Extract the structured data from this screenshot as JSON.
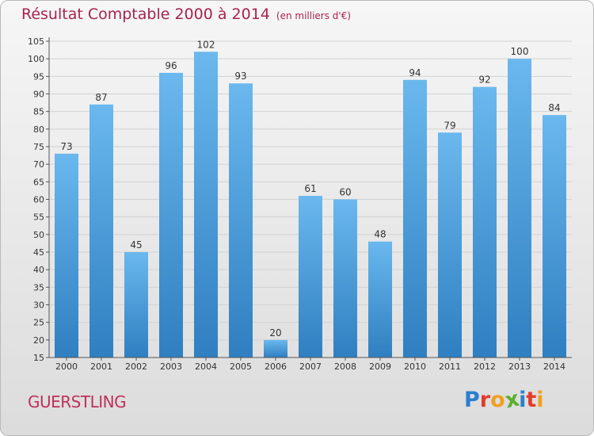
{
  "header": {
    "title": "Résultat Comptable 2000 à 2014",
    "subtitle": "(en milliers d'€)"
  },
  "footer": {
    "commune": "GUERSTLING",
    "logo_letters": [
      "P",
      "r",
      "o",
      "x",
      "i",
      "t",
      "i"
    ],
    "logo_colors": [
      "#2a7fd0",
      "#e23c2c",
      "#f0a020",
      "#5bb030",
      "#2a7fd0",
      "#e23c2c",
      "#f0a020"
    ]
  },
  "colors": {
    "bar_light": "#6ab8ee",
    "bar_dark": "#2f7fc1",
    "title": "#a8234f"
  },
  "chart_data": {
    "type": "bar",
    "title": "Résultat Comptable 2000 à 2014",
    "subtitle": "(en milliers d'€)",
    "categories": [
      "2000",
      "2001",
      "2002",
      "2003",
      "2004",
      "2005",
      "2006",
      "2007",
      "2008",
      "2009",
      "2010",
      "2011",
      "2012",
      "2013",
      "2014"
    ],
    "values": [
      73,
      87,
      45,
      96,
      102,
      93,
      20,
      61,
      60,
      48,
      94,
      79,
      92,
      100,
      84
    ],
    "data_labels": [
      "73",
      "87",
      "45",
      "96",
      "102",
      "93",
      "20",
      "61",
      "60",
      "48",
      "94",
      "79",
      "92",
      "100",
      "84"
    ],
    "yticks": [
      "15",
      "20",
      "25",
      "30",
      "35",
      "40",
      "45",
      "50",
      "55",
      "60",
      "65",
      "70",
      "75",
      "80",
      "85",
      "90",
      "95",
      "100",
      "105"
    ],
    "ylim": [
      15,
      105
    ],
    "grid": true
  }
}
